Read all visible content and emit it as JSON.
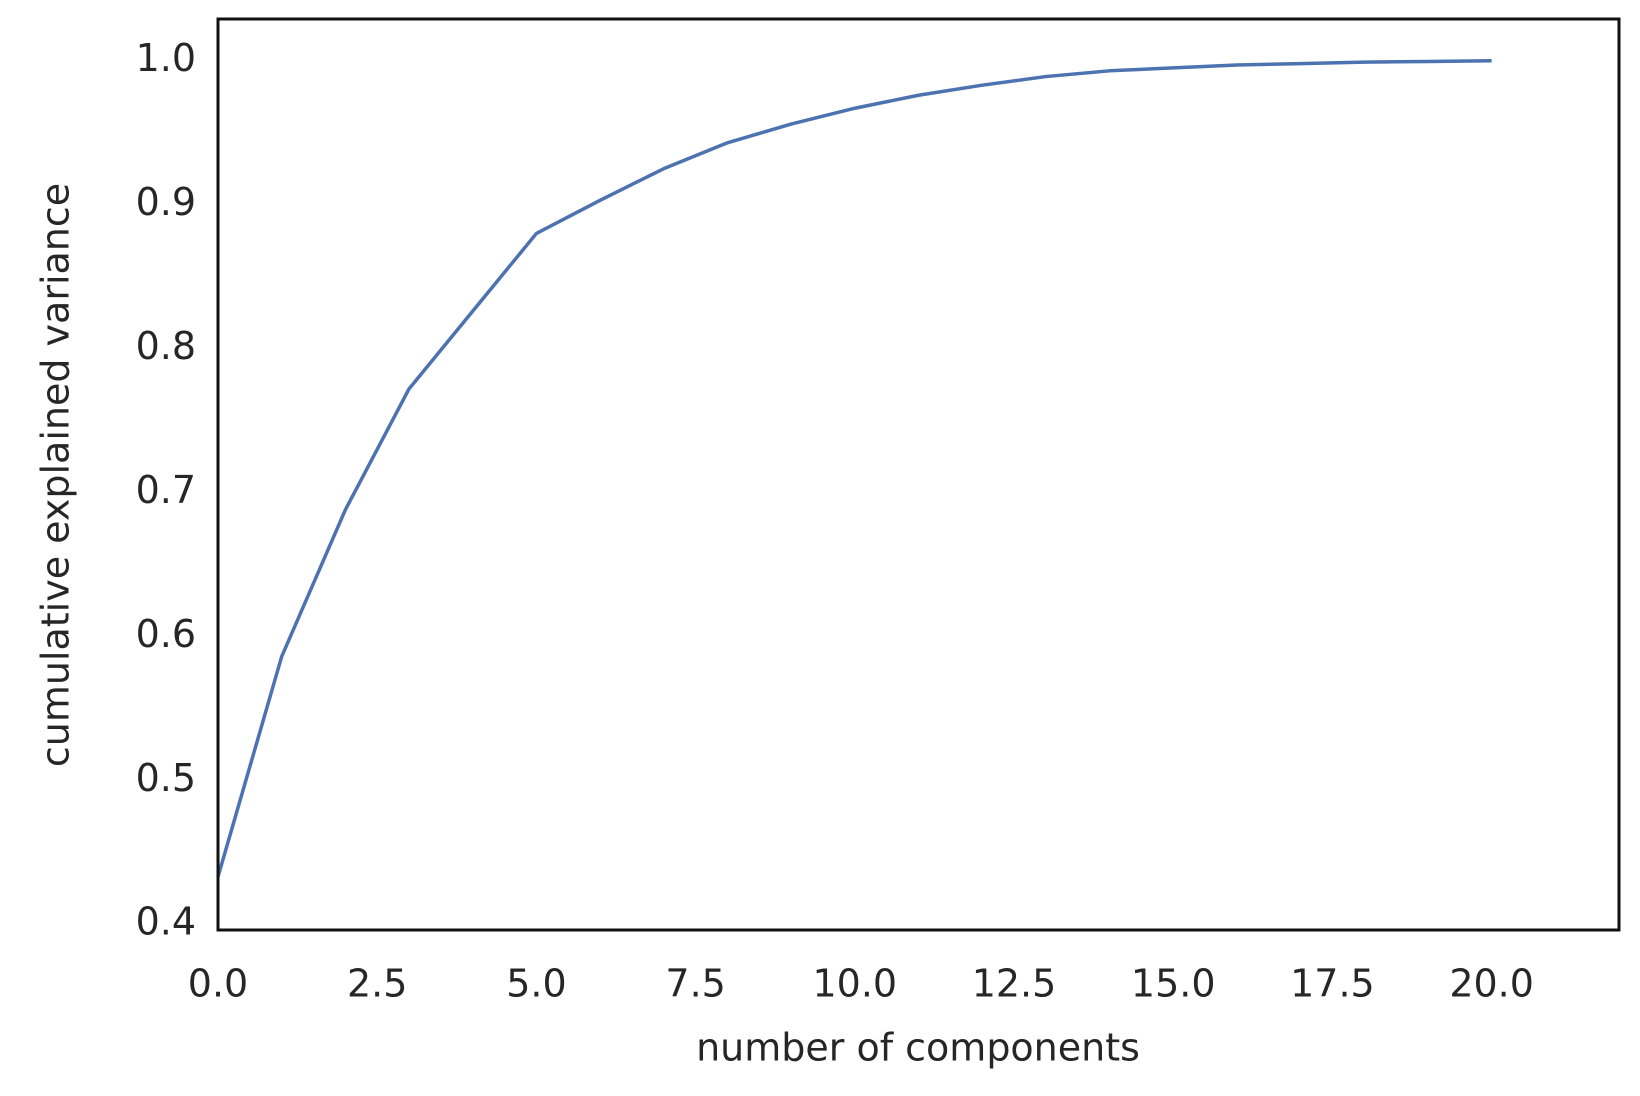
{
  "chart_data": {
    "type": "line",
    "x_label": "number of components",
    "y_label": "cumulative explained variance",
    "x": [
      0,
      1,
      2,
      3,
      4,
      5,
      6,
      7,
      8,
      9,
      10,
      11,
      12,
      13,
      14,
      15,
      16,
      17,
      18,
      19,
      20
    ],
    "series": [
      {
        "color": "#4c72b0",
        "values": [
          0.433,
          0.586,
          0.688,
          0.772,
          0.826,
          0.88,
          0.903,
          0.925,
          0.943,
          0.956,
          0.967,
          0.976,
          0.983,
          0.989,
          0.993,
          0.995,
          0.997,
          0.998,
          0.999,
          0.9995,
          1.0
        ]
      }
    ],
    "xlim": [
      0,
      22
    ],
    "ylim": [
      0.396,
      1.029
    ],
    "xticks": [
      {
        "value": 0,
        "label": "0.0"
      },
      {
        "value": 2.5,
        "label": "2.5"
      },
      {
        "value": 5,
        "label": "5.0"
      },
      {
        "value": 7.5,
        "label": "7.5"
      },
      {
        "value": 10,
        "label": "10.0"
      },
      {
        "value": 12.5,
        "label": "12.5"
      },
      {
        "value": 15,
        "label": "15.0"
      },
      {
        "value": 17.5,
        "label": "17.5"
      },
      {
        "value": 20,
        "label": "20.0"
      }
    ],
    "yticks": [
      0.4,
      0.5,
      0.6,
      0.7,
      0.8,
      0.9,
      {
        "value": 1,
        "label": "1.0"
      }
    ],
    "grid": false
  }
}
